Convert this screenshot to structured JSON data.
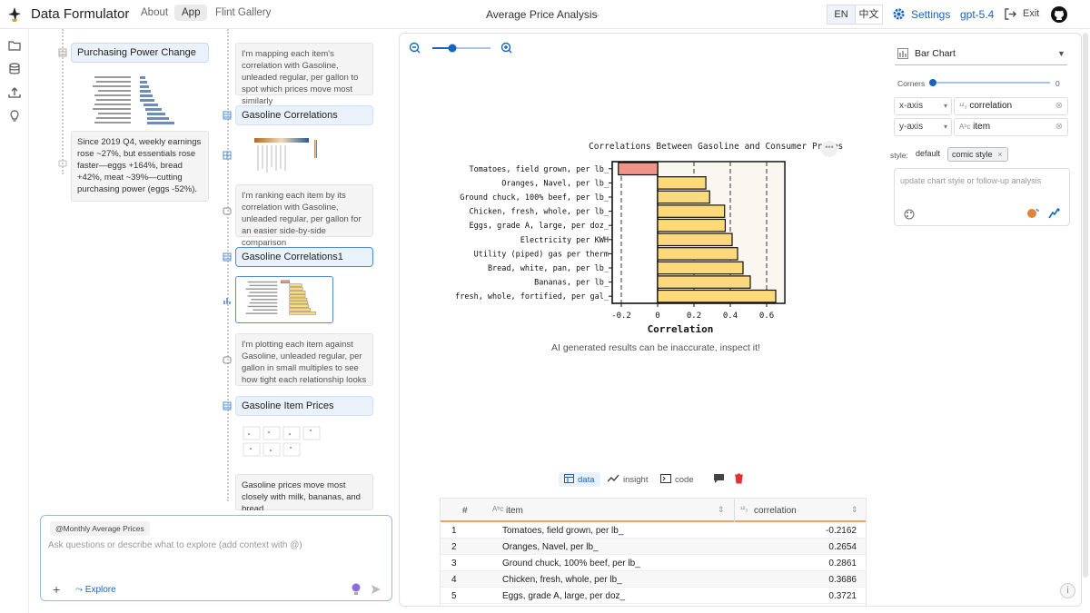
{
  "header": {
    "app_title": "Data Formulator",
    "nav": [
      "About",
      "App",
      "Flint Gallery"
    ],
    "center_title": "Average Price Analysis",
    "lang_en": "EN",
    "lang_zh": "中文",
    "settings": "Settings",
    "model": "gpt-5.4",
    "exit": "Exit"
  },
  "threads": {
    "title_purchasing": "Purchasing Power Change",
    "note_purchasing": "Since 2019 Q4, weekly earnings rose ~27%, but essentials rose faster—eggs +164%, bread +42%, meat ~39%—cutting purchasing power (eggs -52%).",
    "note_mapping": "I'm mapping each item's correlation with Gasoline, unleaded regular, per gallon to spot which prices move most similarly",
    "title_corr": "Gasoline Correlations",
    "note_ranking": "I'm ranking each item by its correlation with Gasoline, unleaded regular, per gallon for an easier side-by-side comparison",
    "title_corr1": "Gasoline Correlations1",
    "note_plotting": "I'm plotting each item against Gasoline, unleaded regular, per gallon in small multiples to see how tight each relationship looks",
    "title_item_prices": "Gasoline Item Prices",
    "note_final": "Gasoline prices move most closely with milk, bananas, and bread."
  },
  "chat": {
    "chip": "@Monthly Average Prices",
    "placeholder": "Ask questions or describe what to explore (add context with @)",
    "explore": "Explore"
  },
  "chart_data": {
    "type": "bar",
    "title": "Correlations Between Gasoline and Consumer Prices",
    "xlabel": "Correlation",
    "ylabel": "",
    "xlim": [
      -0.25,
      0.7
    ],
    "xticks": [
      "-0.2",
      "0",
      "0.2",
      "0.4",
      "0.6"
    ],
    "categories": [
      "Tomatoes, field grown, per lb_",
      "Oranges, Navel, per lb_",
      "Ground chuck, 100% beef, per lb_",
      "Chicken, fresh, whole, per lb_",
      "Eggs, grade A, large, per doz_",
      "Electricity per KWH",
      "Utility (piped) gas per therm",
      "Bread, white, pan, per lb_",
      "Bananas, per lb_",
      "Milk, fresh, whole, fortified, per gal_"
    ],
    "values": [
      -0.2162,
      0.2654,
      0.2861,
      0.3686,
      0.3721,
      0.41,
      0.44,
      0.47,
      0.51,
      0.65
    ],
    "colors": {
      "negative": "#f0948a",
      "positive": "#fcd97a"
    }
  },
  "disclaimer": "AI generated results can be inaccurate, inspect it!",
  "view_tabs": [
    "data",
    "insight",
    "code"
  ],
  "table": {
    "headers": [
      "#",
      "item",
      "correlation"
    ],
    "rows": [
      [
        "1",
        "Tomatoes, field grown, per lb_",
        "-0.2162"
      ],
      [
        "2",
        "Oranges, Navel, per lb_",
        "0.2654"
      ],
      [
        "3",
        "Ground chuck, 100% beef, per lb_",
        "0.2861"
      ],
      [
        "4",
        "Chicken, fresh, whole, per lb_",
        "0.3686"
      ],
      [
        "5",
        "Eggs, grade A, large, per doz_",
        "0.3721"
      ]
    ]
  },
  "encoding": {
    "chart_type": "Bar Chart",
    "corners_label": "Corners",
    "corners_value": "0",
    "x_label": "x-axis",
    "x_field": "correlation",
    "y_label": "y-axis",
    "y_field": "item",
    "style_label": "style:",
    "style_default": "default",
    "style_comic": "comic style",
    "followup_placeholder": "update chart style or follow-up analysis"
  }
}
